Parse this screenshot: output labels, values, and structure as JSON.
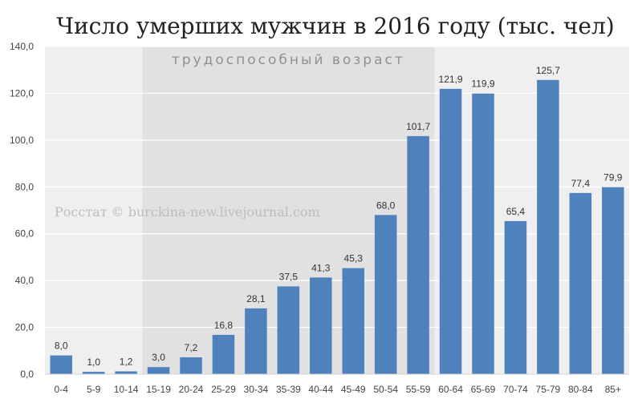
{
  "chart_data": {
    "type": "bar",
    "title": "Число умерших мужчин в 2016 году (тыс. чел)",
    "xlabel": "",
    "ylabel": "",
    "ylim": [
      0,
      140
    ],
    "yticks": [
      "0,0",
      "20,0",
      "40,0",
      "60,0",
      "80,0",
      "100,0",
      "120,0",
      "140,0"
    ],
    "categories": [
      "0-4",
      "5-9",
      "10-14",
      "15-19",
      "20-24",
      "25-29",
      "30-34",
      "35-39",
      "40-44",
      "45-49",
      "50-54",
      "55-59",
      "60-64",
      "65-69",
      "70-74",
      "75-79",
      "80-84",
      "85+"
    ],
    "values": [
      8.0,
      1.0,
      1.2,
      3.0,
      7.2,
      16.8,
      28.1,
      37.5,
      41.3,
      45.3,
      68.0,
      101.7,
      121.9,
      119.9,
      65.4,
      125.7,
      77.4,
      79.9
    ],
    "data_labels": [
      "8,0",
      "1,0",
      "1,2",
      "3,0",
      "7,2",
      "16,8",
      "28,1",
      "37,5",
      "41,3",
      "45,3",
      "68,0",
      "101,7",
      "121,9",
      "119,9",
      "65,4",
      "125,7",
      "77,4",
      "79,9"
    ],
    "highlight_region": {
      "label": "трудоспособный возраст",
      "from_category": "15-19",
      "to_category": "55-59"
    },
    "watermark": "Росстат © burckina-new.livejournal.com",
    "grid": true,
    "legend": "none",
    "colors": {
      "bar": "#4f81bd",
      "plot_background": "#efefef",
      "highlight_background": "#e1e1e1",
      "gridline": "#ffffff"
    }
  }
}
